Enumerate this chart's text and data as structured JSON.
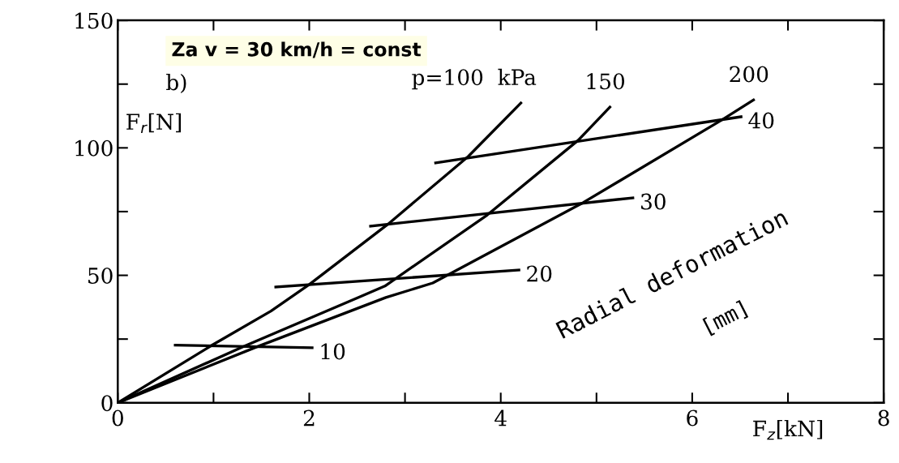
{
  "chart_data": {
    "type": "line",
    "title": "Za v = 30 km/h = const",
    "xlabel": "F$_{z}$[kN]",
    "ylabel": "F$_{r}$[N]",
    "xlim": [
      0,
      8
    ],
    "ylim": [
      0,
      150
    ],
    "xticks": [
      0,
      {
        "value": 1,
        "label": null
      },
      2,
      {
        "value": 3,
        "label": null
      },
      4,
      {
        "value": 5,
        "label": null
      },
      6,
      {
        "value": 7,
        "label": null
      },
      8
    ],
    "yticks": [
      0,
      {
        "value": 25,
        "label": null
      },
      50,
      {
        "value": 75,
        "label": null
      },
      100,
      {
        "value": 125,
        "label": null
      },
      150
    ],
    "grid": false,
    "legend": false,
    "marker": "none",
    "line_style": "solid",
    "annotations": [
      "b)",
      "Radial deformation",
      "[mm]"
    ],
    "series": [
      {
        "name": "p=100  kPa",
        "color": "#000000",
        "x": [
          0,
          0.98,
          1.6,
          2.0,
          2.82,
          3.66,
          4.21
        ],
        "values": [
          0,
          22.5,
          36,
          46.4,
          70,
          96.6,
          117.6
        ]
      },
      {
        "name": "150",
        "color": "#000000",
        "x": [
          0,
          1.32,
          2.51,
          2.79,
          3.86,
          4.81,
          5.14
        ],
        "values": [
          0,
          22.2,
          41.3,
          45.8,
          73.7,
          103,
          116
        ]
      },
      {
        "name": "200",
        "color": "#000000",
        "x": [
          0,
          1.45,
          2.8,
          3.29,
          4.86,
          6.32,
          6.64
        ],
        "values": [
          0,
          21.9,
          41.3,
          47,
          78.5,
          111.2,
          118.8
        ]
      },
      {
        "name": "10",
        "color": "#000000",
        "x": [
          0.6,
          2.03
        ],
        "values": [
          22.6,
          21.6
        ]
      },
      {
        "name": "20",
        "color": "#000000",
        "x": [
          1.65,
          4.19
        ],
        "values": [
          45.4,
          52.1
        ]
      },
      {
        "name": "30",
        "color": "#000000",
        "x": [
          2.64,
          5.38
        ],
        "values": [
          69.3,
          80.4
        ]
      },
      {
        "name": "40",
        "color": "#000000",
        "x": [
          3.32,
          6.51
        ],
        "values": [
          94.1,
          112.2
        ]
      }
    ]
  }
}
